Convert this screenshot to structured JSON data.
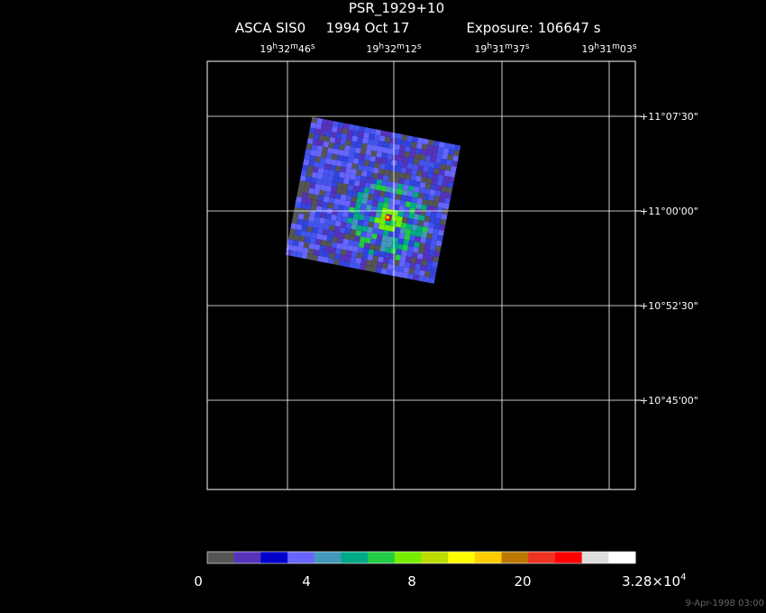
{
  "header": {
    "title": "PSR_1929+10",
    "instrument": "ASCA SIS0",
    "date": "1994 Oct 17",
    "exposure": "Exposure: 106647 s"
  },
  "ra_labels": [
    [
      "19",
      "h",
      "32",
      "m",
      "46",
      "s"
    ],
    [
      "19",
      "h",
      "32",
      "m",
      "12",
      "s"
    ],
    [
      "19",
      "h",
      "31",
      "m",
      "37",
      "s"
    ],
    [
      "19",
      "h",
      "31",
      "m",
      "03",
      "s"
    ]
  ],
  "dec_labels": [
    "+11°07'30\"",
    "+11°00'00\"",
    "+10°52'30\"",
    "+10°45'00\""
  ],
  "colorbar": {
    "colors": [
      "#555555",
      "#5533bb",
      "#0000cc",
      "#6666ff",
      "#4499bb",
      "#00aa88",
      "#22cc44",
      "#77ee00",
      "#bbdd00",
      "#ffff00",
      "#ffcc00",
      "#bb7700",
      "#ee3322",
      "#ff0000",
      "#dddddd",
      "#ffffff"
    ],
    "labels": [
      "0",
      "4",
      "8",
      "20"
    ],
    "max_label": {
      "mantissa": "3.28×10",
      "exponent": "4"
    }
  },
  "footer": "9-Apr-1998 03:00"
}
